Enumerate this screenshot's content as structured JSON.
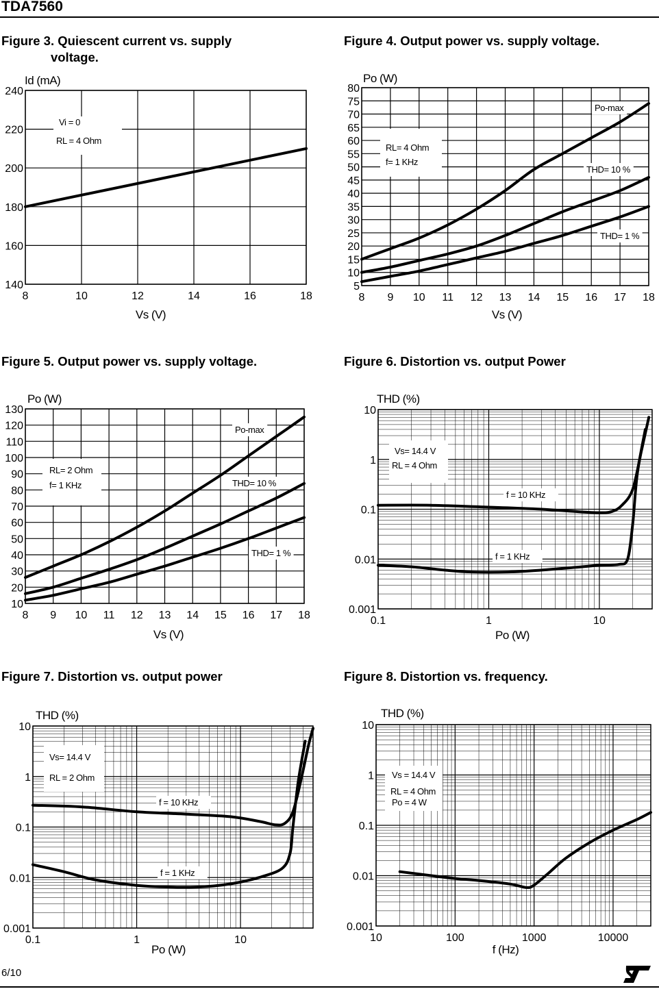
{
  "header": {
    "title": "TDA7560"
  },
  "footer": {
    "page": "6/10",
    "logo": "st-logo"
  },
  "figures": [
    {
      "title": "Figure 3. Quiescent current vs. supply\n              voltage."
    },
    {
      "title": "Figure 4. Output power vs. supply voltage."
    },
    {
      "title": "Figure 5. Output power vs. supply voltage."
    },
    {
      "title": "Figure 6. Distortion vs. output Power"
    },
    {
      "title": "Figure 7. Distortion vs. output power"
    },
    {
      "title": "Figure 8. Distortion vs. frequency."
    }
  ],
  "chart_data": [
    {
      "type": "line",
      "ylabel": "Id (mA)",
      "xlabel": "Vs (V)",
      "xlim": [
        8,
        18
      ],
      "ylim": [
        140,
        240
      ],
      "xticks": [
        8,
        10,
        12,
        14,
        16,
        18
      ],
      "yticks": [
        140,
        160,
        180,
        200,
        220,
        240
      ],
      "grid": true,
      "annotations": [
        "Vi = 0",
        "RL = 4 Ohm"
      ],
      "series": [
        {
          "x": [
            8,
            18
          ],
          "y": [
            180,
            210
          ]
        }
      ]
    },
    {
      "type": "line",
      "ylabel": "Po (W)",
      "xlabel": "Vs (V)",
      "xlim": [
        8,
        18
      ],
      "ylim": [
        5,
        80
      ],
      "xticks": [
        8,
        9,
        10,
        11,
        12,
        13,
        14,
        15,
        16,
        17,
        18
      ],
      "yticks": [
        5,
        10,
        15,
        20,
        25,
        30,
        35,
        40,
        45,
        50,
        55,
        60,
        65,
        70,
        75,
        80
      ],
      "grid": true,
      "annotations": [
        "RL= 4 Ohm",
        "f= 1 KHz"
      ],
      "series": [
        {
          "name": "Po-max",
          "x": [
            8,
            9,
            10,
            11,
            12,
            13,
            14,
            15,
            16,
            17,
            18
          ],
          "y": [
            15,
            19,
            23,
            28,
            34,
            41,
            49,
            55,
            61,
            67,
            74
          ]
        },
        {
          "name": "THD= 10 %",
          "x": [
            8,
            9,
            10,
            11,
            12,
            13,
            14,
            15,
            16,
            17,
            18
          ],
          "y": [
            10,
            12,
            14.5,
            17,
            20,
            24,
            28.5,
            33,
            37,
            41,
            46
          ]
        },
        {
          "name": "THD= 1 %",
          "x": [
            8,
            9,
            10,
            11,
            12,
            13,
            14,
            15,
            16,
            17,
            18
          ],
          "y": [
            6.5,
            8.5,
            10.5,
            13,
            15.5,
            18,
            21,
            24,
            27.5,
            31,
            35
          ]
        }
      ]
    },
    {
      "type": "line",
      "ylabel": "Po (W)",
      "xlabel": "Vs (V)",
      "xlim": [
        8,
        18
      ],
      "ylim": [
        10,
        130
      ],
      "xticks": [
        8,
        9,
        10,
        11,
        12,
        13,
        14,
        15,
        16,
        17,
        18
      ],
      "yticks": [
        10,
        20,
        30,
        40,
        50,
        60,
        70,
        80,
        90,
        100,
        110,
        120,
        130
      ],
      "grid": true,
      "annotations": [
        "RL= 2 Ohm",
        "f= 1 KHz"
      ],
      "series": [
        {
          "name": "Po-max",
          "x": [
            8,
            9,
            10,
            11,
            12,
            13,
            14,
            15,
            16,
            17,
            18
          ],
          "y": [
            26,
            33,
            40,
            48,
            57,
            67,
            78,
            89,
            101,
            113,
            125
          ]
        },
        {
          "name": "THD= 10 %",
          "x": [
            8,
            9,
            10,
            11,
            12,
            13,
            14,
            15,
            16,
            17,
            18
          ],
          "y": [
            16,
            20,
            25.5,
            31,
            37,
            44,
            51.5,
            59,
            67,
            75,
            84
          ]
        },
        {
          "name": "THD= 1 %",
          "x": [
            8,
            9,
            10,
            11,
            12,
            13,
            14,
            15,
            16,
            17,
            18
          ],
          "y": [
            12,
            15,
            19,
            23,
            28,
            33,
            38.5,
            44,
            50,
            56.5,
            63
          ]
        }
      ]
    },
    {
      "type": "line",
      "ylabel": "THD (%)",
      "xlabel": "Po (W)",
      "xscale": "log",
      "yscale": "log",
      "xlim": [
        0.1,
        30
      ],
      "ylim": [
        0.001,
        10
      ],
      "xticks": [
        0.1,
        1,
        10
      ],
      "yticks": [
        0.001,
        0.01,
        0.1,
        1,
        10
      ],
      "xtick_labels": [
        "0.1",
        "1",
        "10"
      ],
      "ytick_labels": [
        "0.001",
        "0.01",
        "0.1",
        "1",
        "10"
      ],
      "grid": true,
      "annotations": [
        "Vs= 14.4 V",
        "RL = 4 Ohm"
      ],
      "series": [
        {
          "name": "f = 10 KHz",
          "x": [
            0.1,
            0.3,
            1,
            3,
            6,
            10,
            13,
            16,
            20,
            24,
            28
          ],
          "y": [
            0.12,
            0.12,
            0.11,
            0.1,
            0.09,
            0.085,
            0.09,
            0.12,
            0.25,
            1.5,
            7
          ]
        },
        {
          "name": "f = 1 KHz",
          "x": [
            0.1,
            0.2,
            0.4,
            0.7,
            1.5,
            3,
            6,
            10,
            15,
            18,
            20,
            22,
            26
          ],
          "y": [
            0.0075,
            0.007,
            0.006,
            0.0055,
            0.0055,
            0.006,
            0.0068,
            0.0075,
            0.0078,
            0.01,
            0.05,
            0.5,
            4
          ]
        }
      ]
    },
    {
      "type": "line",
      "ylabel": "THD (%)",
      "xlabel": "Po (W)",
      "xscale": "log",
      "yscale": "log",
      "xlim": [
        0.1,
        50
      ],
      "ylim": [
        0.001,
        10
      ],
      "xticks": [
        0.1,
        1,
        10
      ],
      "yticks": [
        0.001,
        0.01,
        0.1,
        1,
        10
      ],
      "xtick_labels": [
        "0.1",
        "1",
        "10"
      ],
      "ytick_labels": [
        "0.001",
        "0.01",
        "0.1",
        "1",
        "10"
      ],
      "grid": true,
      "annotations": [
        "Vs= 14.4 V",
        "RL = 2 Ohm"
      ],
      "series": [
        {
          "name": "f = 10 KHz",
          "x": [
            0.1,
            0.3,
            1,
            3,
            8,
            15,
            22,
            27,
            32,
            38,
            45,
            50
          ],
          "y": [
            0.27,
            0.25,
            0.2,
            0.18,
            0.16,
            0.13,
            0.11,
            0.12,
            0.2,
            0.8,
            4,
            9
          ]
        },
        {
          "name": "f = 1 KHz",
          "x": [
            0.1,
            0.2,
            0.4,
            1,
            2,
            4,
            8,
            15,
            25,
            30,
            32,
            36,
            42
          ],
          "y": [
            0.018,
            0.013,
            0.009,
            0.007,
            0.0065,
            0.0065,
            0.0075,
            0.01,
            0.015,
            0.03,
            0.1,
            0.8,
            5
          ]
        }
      ]
    },
    {
      "type": "line",
      "ylabel": "THD (%)",
      "xlabel": "f (Hz)",
      "xscale": "log",
      "yscale": "log",
      "xlim": [
        10,
        30000
      ],
      "ylim": [
        0.001,
        10
      ],
      "xticks": [
        10,
        100,
        1000,
        10000
      ],
      "yticks": [
        0.001,
        0.01,
        0.1,
        1,
        10
      ],
      "xtick_labels": [
        "10",
        "100",
        "1000",
        "10000"
      ],
      "ytick_labels": [
        "0.001",
        "0.01",
        "0.1",
        "1",
        "10"
      ],
      "grid": true,
      "annotations": [
        "Vs = 14.4 V",
        "RL = 4 Ohm",
        "Po = 4 W"
      ],
      "series": [
        {
          "x": [
            20,
            50,
            100,
            200,
            500,
            800,
            1000,
            1500,
            2500,
            5000,
            10000,
            20000,
            30000
          ],
          "y": [
            0.012,
            0.01,
            0.0088,
            0.008,
            0.0068,
            0.0058,
            0.0065,
            0.011,
            0.022,
            0.045,
            0.08,
            0.13,
            0.18
          ]
        }
      ]
    }
  ]
}
